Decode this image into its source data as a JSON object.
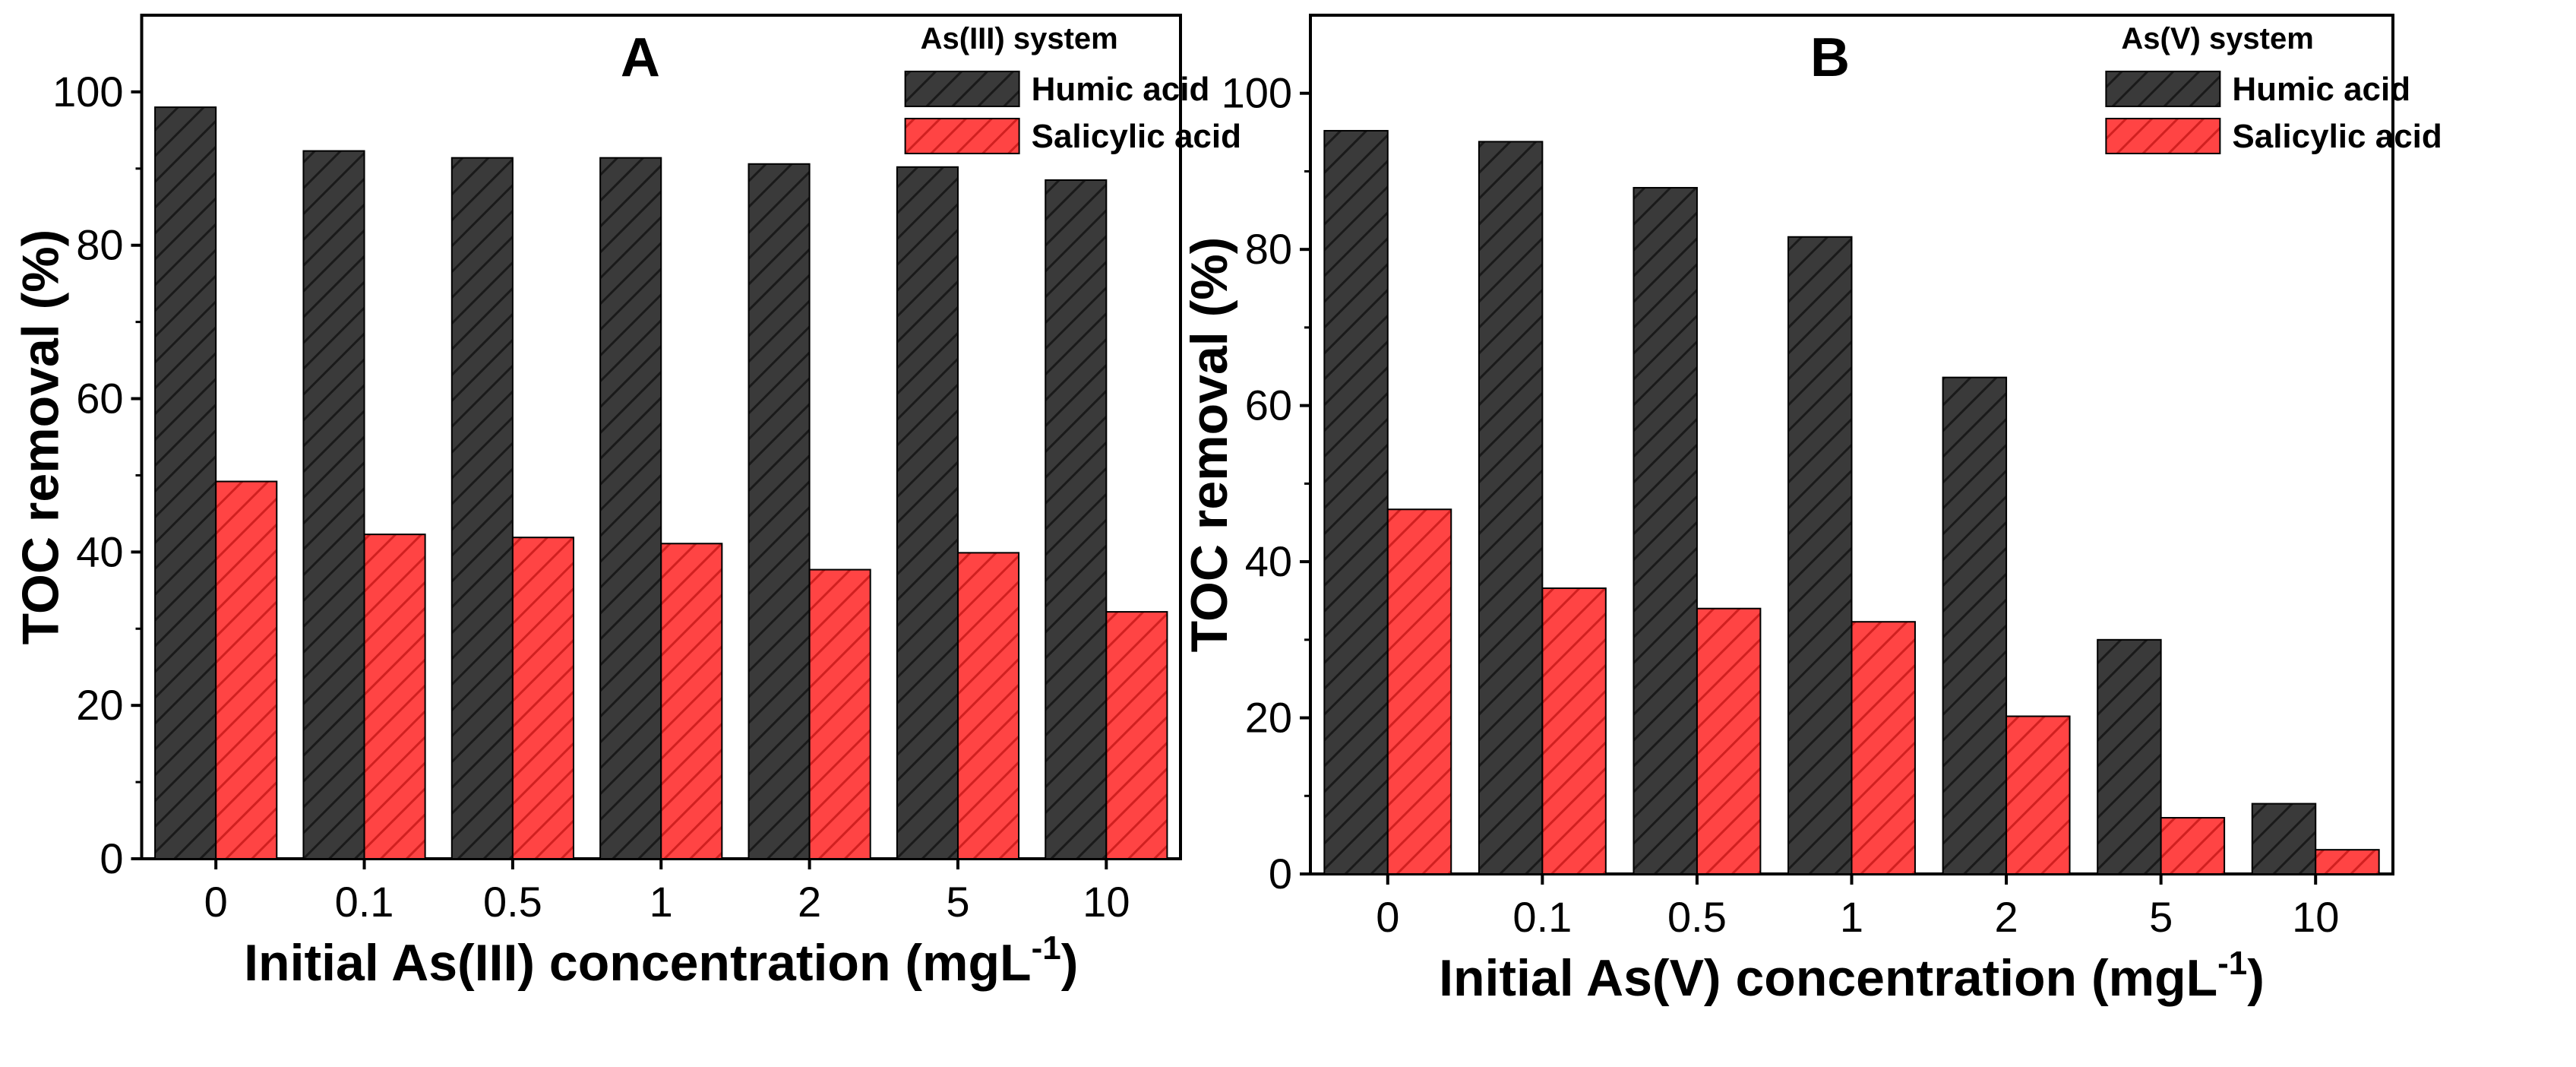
{
  "chart_data": [
    {
      "type": "bar",
      "panel_label": "A",
      "categories": [
        "0",
        "0.1",
        "0.5",
        "1",
        "2",
        "5",
        "10"
      ],
      "series": [
        {
          "name": "Humic acid",
          "values": [
            98,
            92.3,
            91.4,
            91.4,
            90.6,
            90.2,
            88.5
          ],
          "color": "#3a3a3a"
        },
        {
          "name": "Salicylic acid",
          "values": [
            49.2,
            42.3,
            41.9,
            41.1,
            37.7,
            39.9,
            32.2
          ],
          "color": "#ff4444"
        }
      ],
      "title": "",
      "legend_title": "As(III) system",
      "legend_position": "top-right",
      "xlabel": "Initial As(III) concentration (mgL",
      "xlabel_sup": "-1",
      "xlabel_close": ")",
      "ylabel": "TOC removal (%)",
      "ylim": [
        0,
        110
      ],
      "yticks": [
        0,
        20,
        40,
        60,
        80,
        100
      ]
    },
    {
      "type": "bar",
      "panel_label": "B",
      "categories": [
        "0",
        "0.1",
        "0.5",
        "1",
        "2",
        "5",
        "10"
      ],
      "series": [
        {
          "name": "Humic acid",
          "values": [
            95.2,
            93.8,
            87.9,
            81.6,
            63.6,
            30.0,
            9.0
          ],
          "color": "#3a3a3a"
        },
        {
          "name": "Salicylic acid",
          "values": [
            46.7,
            36.6,
            34.0,
            32.3,
            20.2,
            7.2,
            3.1
          ],
          "color": "#ff4444"
        }
      ],
      "title": "",
      "legend_title": "As(V) system",
      "legend_position": "top-right",
      "xlabel": "Initial As(V) concentration (mgL",
      "xlabel_sup": "-1",
      "xlabel_close": ")",
      "ylabel": "TOC removal (%)",
      "ylim": [
        0,
        110
      ],
      "yticks": [
        0,
        20,
        40,
        60,
        80,
        100
      ]
    }
  ]
}
